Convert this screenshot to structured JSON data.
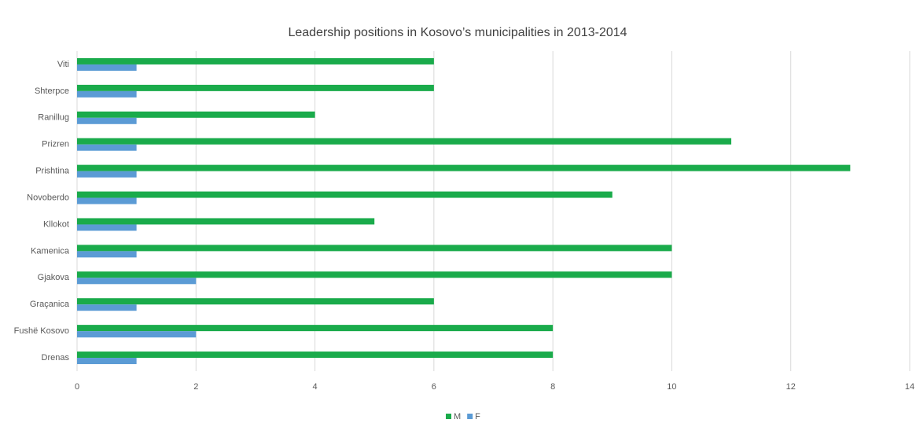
{
  "chart_data": {
    "type": "barh",
    "title": "Leadership positions in Kosovo’s municipalities in 2013-2014",
    "categories": [
      "Viti",
      "Shterpce",
      "Ranillug",
      "Prizren",
      "Prishtina",
      "Novoberdo",
      "Kllokot",
      "Kamenica",
      "Gjakova",
      "Graçanica",
      "Fushë Kosovo",
      "Drenas"
    ],
    "series": [
      {
        "name": "M",
        "color": "#1aab4b",
        "values": [
          6,
          6,
          4,
          11,
          13,
          9,
          5,
          10,
          10,
          6,
          8,
          8
        ]
      },
      {
        "name": "F",
        "color": "#5b9bd5",
        "values": [
          1,
          1,
          1,
          1,
          1,
          1,
          1,
          1,
          2,
          1,
          2,
          1
        ]
      }
    ],
    "xlim": [
      0,
      14
    ],
    "xticks": [
      0,
      2,
      4,
      6,
      8,
      10,
      12,
      14
    ],
    "grid": true,
    "legend": "bottom"
  }
}
